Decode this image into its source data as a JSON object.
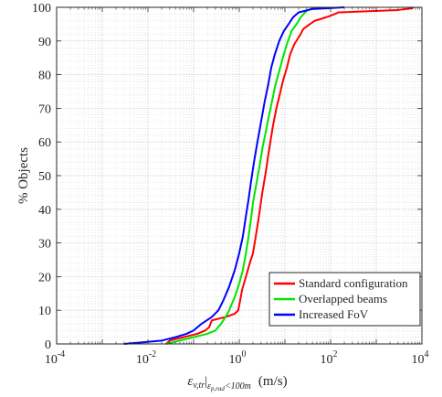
{
  "chart_data": {
    "type": "line",
    "title": "",
    "xlabel_main": "ε",
    "xlabel_sub": "v,tr",
    "xlabel_cond": "ε",
    "xlabel_cond_sub": "p,rad",
    "xlabel_cond_tail": "<100m",
    "xlabel_units": "(m/s)",
    "ylabel": "% Objects",
    "x_scale": "log",
    "xlim": [
      0.0001,
      10000
    ],
    "ylim": [
      0,
      100
    ],
    "x_ticks": [
      {
        "base": "10",
        "exp": "-4"
      },
      {
        "base": "10",
        "exp": "-2"
      },
      {
        "base": "10",
        "exp": "0"
      },
      {
        "base": "10",
        "exp": "2"
      },
      {
        "base": "10",
        "exp": "4"
      }
    ],
    "y_ticks": [
      "0",
      "10",
      "20",
      "30",
      "40",
      "50",
      "60",
      "70",
      "80",
      "90",
      "100"
    ],
    "grid": true,
    "legend_position": "bottom-right",
    "series": [
      {
        "name": "Standard configuration",
        "color": "#ff0000",
        "points": [
          [
            0.025,
            0
          ],
          [
            0.03,
            1
          ],
          [
            0.06,
            2
          ],
          [
            0.12,
            3
          ],
          [
            0.18,
            4
          ],
          [
            0.22,
            5
          ],
          [
            0.25,
            7
          ],
          [
            0.5,
            8
          ],
          [
            0.8,
            9
          ],
          [
            0.95,
            10
          ],
          [
            1.05,
            13
          ],
          [
            1.15,
            16
          ],
          [
            1.4,
            20
          ],
          [
            1.7,
            24
          ],
          [
            2.0,
            27
          ],
          [
            2.3,
            32
          ],
          [
            2.7,
            38
          ],
          [
            3.2,
            45
          ],
          [
            3.8,
            51
          ],
          [
            4.2,
            55
          ],
          [
            4.8,
            60
          ],
          [
            5.5,
            65
          ],
          [
            6.5,
            70
          ],
          [
            8,
            75
          ],
          [
            9,
            78
          ],
          [
            11,
            82
          ],
          [
            13,
            86
          ],
          [
            16,
            89
          ],
          [
            22,
            92
          ],
          [
            25,
            93.5
          ],
          [
            35,
            95
          ],
          [
            45,
            96
          ],
          [
            60,
            96.5
          ],
          [
            100,
            97.5
          ],
          [
            150,
            98.5
          ],
          [
            3000,
            99.2
          ],
          [
            6000,
            99.7
          ],
          [
            6500,
            100
          ]
        ]
      },
      {
        "name": "Overlapped beams",
        "color": "#00e600",
        "points": [
          [
            0.025,
            0
          ],
          [
            0.05,
            1
          ],
          [
            0.1,
            2
          ],
          [
            0.2,
            3
          ],
          [
            0.3,
            4
          ],
          [
            0.4,
            6
          ],
          [
            0.5,
            8
          ],
          [
            0.6,
            10
          ],
          [
            0.8,
            14
          ],
          [
            1.0,
            18
          ],
          [
            1.2,
            22
          ],
          [
            1.4,
            27
          ],
          [
            1.6,
            32
          ],
          [
            1.8,
            37
          ],
          [
            2.0,
            42
          ],
          [
            2.4,
            48
          ],
          [
            2.8,
            53
          ],
          [
            3.2,
            58
          ],
          [
            3.8,
            63
          ],
          [
            4.5,
            68
          ],
          [
            5.2,
            72
          ],
          [
            6.2,
            77
          ],
          [
            7.5,
            81
          ],
          [
            9,
            85
          ],
          [
            11,
            89
          ],
          [
            14,
            93
          ],
          [
            18,
            95
          ],
          [
            22,
            97
          ],
          [
            30,
            99
          ],
          [
            45,
            100
          ]
        ]
      },
      {
        "name": "Increased FoV",
        "color": "#0000ff",
        "points": [
          [
            0.003,
            0
          ],
          [
            0.008,
            0.5
          ],
          [
            0.02,
            1
          ],
          [
            0.04,
            2
          ],
          [
            0.07,
            3
          ],
          [
            0.1,
            4
          ],
          [
            0.15,
            6
          ],
          [
            0.25,
            8
          ],
          [
            0.35,
            10
          ],
          [
            0.45,
            13
          ],
          [
            0.6,
            17
          ],
          [
            0.8,
            22
          ],
          [
            1.0,
            27
          ],
          [
            1.2,
            32
          ],
          [
            1.4,
            38
          ],
          [
            1.6,
            43
          ],
          [
            1.8,
            48
          ],
          [
            2.1,
            54
          ],
          [
            2.5,
            60
          ],
          [
            3.0,
            66
          ],
          [
            3.6,
            72
          ],
          [
            4.3,
            77
          ],
          [
            5.0,
            82
          ],
          [
            6.0,
            86
          ],
          [
            7.5,
            90
          ],
          [
            9.5,
            93
          ],
          [
            12,
            95
          ],
          [
            15,
            97
          ],
          [
            20,
            98.5
          ],
          [
            40,
            99.5
          ],
          [
            200,
            100
          ]
        ]
      }
    ]
  }
}
